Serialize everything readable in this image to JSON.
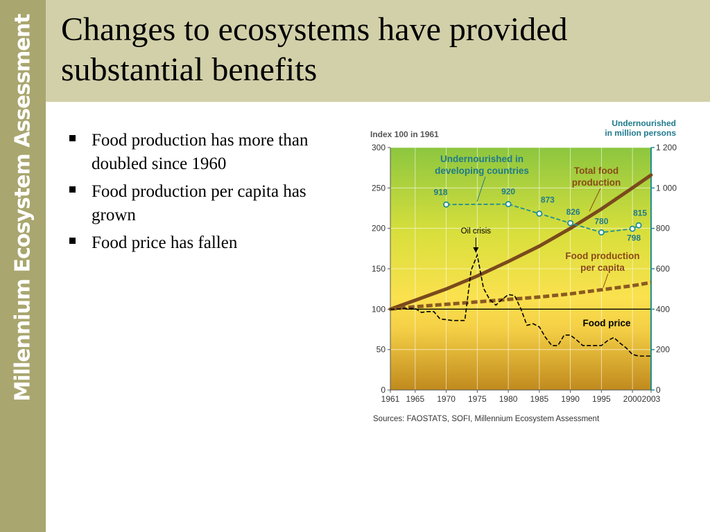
{
  "sidebar": {
    "brand": "Millennium Ecosystem Assessment"
  },
  "header": {
    "title": "Changes to ecosystems have provided substantial benefits"
  },
  "bullets": [
    "Food production has more than doubled since 1960",
    "Food production per capita has grown",
    "Food price has fallen"
  ],
  "chart_data": {
    "type": "line",
    "left_axis_title": "Index 100 in 1961",
    "right_axis_title": [
      "Undernourished",
      "in million persons"
    ],
    "left_ylim": [
      0,
      300
    ],
    "right_ylim": [
      0,
      1200
    ],
    "left_ticks": [
      "0",
      "50",
      "100",
      "150",
      "200",
      "250",
      "300"
    ],
    "right_ticks": [
      "0",
      "200",
      "400",
      "600",
      "800",
      "1 000",
      "1 200"
    ],
    "x_ticks": [
      "1961",
      "1965",
      "1970",
      "1975",
      "1980",
      "1985",
      "1990",
      "1995",
      "2000",
      "2003"
    ],
    "xlim": [
      1961,
      2003
    ],
    "grid": true,
    "series": [
      {
        "name": "Total food production",
        "axis": "left",
        "style": "solid",
        "color": "#7a4a1c",
        "x": [
          1961,
          1965,
          1970,
          1975,
          1980,
          1985,
          1990,
          1995,
          2000,
          2003
        ],
        "y": [
          100,
          111,
          125,
          141,
          159,
          178,
          200,
          224,
          250,
          266
        ]
      },
      {
        "name": "Food production per capita",
        "axis": "left",
        "style": "dashed",
        "color": "#8a5a22",
        "x": [
          1961,
          1965,
          1970,
          1975,
          1980,
          1985,
          1990,
          1995,
          2000,
          2003
        ],
        "y": [
          100,
          103,
          106,
          109,
          112,
          115,
          119,
          124,
          129,
          133
        ]
      },
      {
        "name": "Food price",
        "axis": "left",
        "style": "dashed",
        "color": "#000000",
        "x": [
          1961,
          1962,
          1963,
          1964,
          1965,
          1966,
          1967,
          1968,
          1969,
          1970,
          1971,
          1972,
          1973,
          1974,
          1975,
          1976,
          1977,
          1978,
          1979,
          1980,
          1981,
          1982,
          1983,
          1984,
          1985,
          1986,
          1987,
          1988,
          1989,
          1990,
          1991,
          1992,
          1993,
          1994,
          1995,
          1996,
          1997,
          1998,
          1999,
          2000,
          2001,
          2002,
          2003
        ],
        "y": [
          100,
          100,
          101,
          101,
          101,
          96,
          97,
          97,
          88,
          87,
          86,
          86,
          86,
          148,
          167,
          126,
          112,
          105,
          112,
          118,
          117,
          101,
          80,
          82,
          78,
          65,
          55,
          55,
          68,
          68,
          62,
          55,
          55,
          55,
          55,
          61,
          65,
          58,
          52,
          44,
          42,
          42,
          42
        ]
      },
      {
        "name": "Undernourished in developing countries",
        "axis": "right",
        "style": "dashed-markers",
        "color": "#1f8f8f",
        "x": [
          1970,
          1980,
          1985,
          1990,
          1995,
          2000,
          2001
        ],
        "y": [
          918,
          920,
          873,
          826,
          780,
          798,
          815
        ],
        "labels": [
          "918",
          "920",
          "873",
          "826",
          "780",
          "798",
          "815"
        ]
      }
    ],
    "annotations": [
      {
        "text": "Oil crisis",
        "x": 1975
      }
    ],
    "source": "Sources: FAOSTATS, SOFI, Millennium Ecosystem Assessment"
  }
}
